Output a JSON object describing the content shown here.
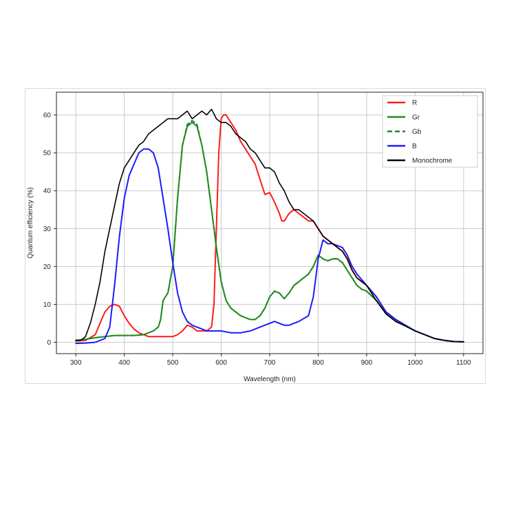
{
  "chart_data": {
    "type": "line",
    "title": "",
    "xlabel": "Wavelength (nm)",
    "ylabel": "Quantum efficiency (%)",
    "xlim": [
      260,
      1140
    ],
    "ylim": [
      -3,
      66
    ],
    "xticks": [
      300,
      400,
      500,
      600,
      700,
      800,
      900,
      1000,
      1100
    ],
    "yticks": [
      0,
      10,
      20,
      30,
      40,
      50,
      60
    ],
    "grid": true,
    "legend_position": "top-right",
    "series": [
      {
        "name": "R",
        "color": "#ff1a1a",
        "dash": "solid",
        "x": [
          300,
          320,
          340,
          350,
          360,
          370,
          380,
          390,
          400,
          410,
          420,
          430,
          440,
          450,
          460,
          470,
          480,
          490,
          500,
          510,
          520,
          530,
          540,
          550,
          560,
          570,
          580,
          585,
          590,
          595,
          600,
          605,
          610,
          615,
          620,
          630,
          640,
          650,
          660,
          670,
          680,
          690,
          700,
          710,
          720,
          725,
          730,
          740,
          750,
          760,
          770,
          780,
          790,
          800,
          810,
          820,
          830,
          840,
          850,
          860,
          870,
          880,
          890,
          900,
          920,
          940,
          960,
          980,
          1000,
          1020,
          1040,
          1060,
          1080,
          1100
        ],
        "y": [
          0.3,
          0.5,
          2,
          5,
          8,
          9.5,
          10,
          9.5,
          7,
          5,
          3.5,
          2.5,
          2,
          1.5,
          1.5,
          1.5,
          1.5,
          1.5,
          1.5,
          2,
          3,
          4.5,
          4,
          3,
          3,
          3,
          4,
          10,
          30,
          50,
          59,
          60,
          60,
          59,
          58,
          56,
          53,
          51,
          49,
          47,
          43,
          39,
          39.5,
          37,
          34,
          32,
          32,
          34,
          35,
          34,
          33,
          32,
          32,
          30,
          28,
          27,
          26,
          25,
          24,
          22,
          19,
          17,
          16,
          15,
          12,
          8,
          6,
          4.5,
          3,
          2,
          1,
          0.5,
          0.2,
          0.1
        ]
      },
      {
        "name": "Gr",
        "color": "#1f8a1f",
        "dash": "solid",
        "x": [
          300,
          320,
          340,
          360,
          380,
          400,
          420,
          440,
          450,
          460,
          470,
          475,
          480,
          490,
          500,
          510,
          520,
          530,
          540,
          550,
          560,
          570,
          580,
          590,
          600,
          610,
          620,
          630,
          640,
          650,
          660,
          670,
          680,
          690,
          700,
          710,
          720,
          730,
          740,
          750,
          760,
          770,
          780,
          790,
          800,
          810,
          820,
          830,
          840,
          850,
          860,
          870,
          880,
          890,
          900,
          920,
          940,
          960,
          980,
          1000,
          1020,
          1040,
          1060,
          1080,
          1100
        ],
        "y": [
          0.5,
          0.8,
          1.2,
          1.5,
          1.8,
          1.8,
          1.8,
          2,
          2.5,
          3,
          4,
          6,
          11,
          13,
          20,
          38,
          52,
          57,
          58,
          57,
          52,
          45,
          35,
          25,
          16,
          11,
          9,
          8,
          7,
          6.5,
          6,
          6,
          7,
          9,
          12,
          13.5,
          13,
          11.5,
          13,
          15,
          16,
          17,
          18,
          20,
          23,
          22,
          21.5,
          22,
          22,
          21,
          19,
          17,
          15,
          14,
          13.5,
          11,
          7.5,
          5.5,
          4.3,
          3,
          2,
          1,
          0.5,
          0.2,
          0.1
        ]
      },
      {
        "name": "Gb",
        "color": "#1f8a1f",
        "dash": "dashed",
        "x": [
          300,
          320,
          340,
          360,
          380,
          400,
          420,
          440,
          450,
          460,
          470,
          475,
          480,
          490,
          500,
          510,
          520,
          530,
          540,
          550,
          560,
          570,
          580,
          590,
          600,
          610,
          620,
          630,
          640,
          650,
          660,
          670,
          680,
          690,
          700,
          710,
          720,
          730,
          740,
          750,
          760,
          770,
          780,
          790,
          800,
          810,
          820,
          830,
          840,
          850,
          860,
          870,
          880,
          890,
          900,
          920,
          940,
          960,
          980,
          1000,
          1020,
          1040,
          1060,
          1080,
          1100
        ],
        "y": [
          0.5,
          0.8,
          1.2,
          1.5,
          1.8,
          1.8,
          1.8,
          2,
          2.5,
          3,
          4,
          6,
          11,
          13,
          20,
          38,
          52,
          57.5,
          58.5,
          57.5,
          52,
          45,
          35,
          25,
          16,
          11,
          9,
          8,
          7,
          6.5,
          6,
          6,
          7,
          9,
          12,
          13.5,
          13,
          11.5,
          13,
          15,
          16,
          17,
          18,
          20,
          23,
          22,
          21.5,
          22,
          22,
          21,
          19,
          17,
          15,
          14,
          13.5,
          11,
          7.5,
          5.5,
          4.3,
          3,
          2,
          1,
          0.5,
          0.2,
          0.1
        ]
      },
      {
        "name": "B",
        "color": "#1a1aff",
        "dash": "solid",
        "x": [
          300,
          320,
          340,
          360,
          370,
          380,
          390,
          400,
          410,
          420,
          430,
          440,
          450,
          455,
          460,
          470,
          480,
          490,
          500,
          510,
          520,
          530,
          540,
          550,
          560,
          570,
          580,
          590,
          600,
          620,
          640,
          660,
          680,
          700,
          710,
          720,
          730,
          740,
          760,
          780,
          790,
          800,
          810,
          820,
          830,
          840,
          850,
          860,
          870,
          880,
          890,
          900,
          920,
          940,
          960,
          980,
          1000,
          1020,
          1040,
          1060,
          1080,
          1100
        ],
        "y": [
          -0.3,
          -0.2,
          0,
          1,
          4,
          15,
          28,
          38,
          44,
          47,
          50,
          51,
          51,
          50.5,
          50,
          46,
          38,
          30,
          21,
          13,
          8,
          5.5,
          4.5,
          4,
          3.5,
          3,
          3,
          3,
          3,
          2.5,
          2.5,
          3,
          4,
          5,
          5.5,
          5,
          4.5,
          4.5,
          5.5,
          7,
          12,
          22,
          27,
          26,
          26,
          25.5,
          25,
          23,
          20,
          18,
          16.5,
          15,
          12,
          8,
          6,
          4.5,
          3,
          2,
          1,
          0.5,
          0.2,
          0.1
        ]
      },
      {
        "name": "Monochrome",
        "color": "#000000",
        "dash": "solid",
        "x": [
          300,
          310,
          320,
          330,
          340,
          350,
          360,
          370,
          380,
          390,
          400,
          410,
          420,
          430,
          440,
          450,
          460,
          470,
          480,
          490,
          500,
          510,
          520,
          530,
          540,
          550,
          560,
          570,
          580,
          590,
          600,
          610,
          620,
          630,
          640,
          650,
          660,
          670,
          680,
          690,
          700,
          710,
          720,
          730,
          740,
          750,
          760,
          770,
          780,
          790,
          800,
          810,
          820,
          830,
          840,
          850,
          860,
          870,
          880,
          890,
          900,
          920,
          940,
          960,
          980,
          1000,
          1020,
          1040,
          1060,
          1080,
          1100
        ],
        "y": [
          0.5,
          0.5,
          1.5,
          5,
          10,
          16,
          24,
          30,
          36,
          42,
          46,
          48,
          50,
          52,
          53,
          55,
          56,
          57,
          58,
          59,
          59,
          59,
          60,
          61,
          59,
          60,
          61,
          60,
          61.5,
          59,
          58,
          58,
          57,
          55,
          54,
          53,
          51,
          50,
          48,
          46,
          46,
          45,
          42,
          40,
          37,
          35,
          35,
          34,
          33,
          32,
          30,
          28,
          27,
          26,
          25,
          24,
          22,
          19,
          17,
          16,
          15,
          11,
          7.5,
          5.5,
          4.3,
          3,
          2,
          1,
          0.5,
          0.2,
          0.1
        ]
      }
    ]
  }
}
